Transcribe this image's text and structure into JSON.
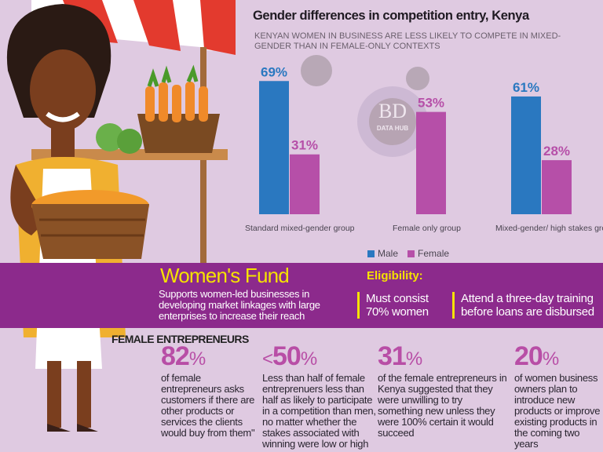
{
  "chart_data": {
    "type": "bar",
    "title": "Gender differences in competition entry, Kenya",
    "subtitle": "KENYAN WOMEN IN BUSINESS ARE LESS LIKELY TO COMPETE IN MIXED-GENDER THAN IN FEMALE-ONLY CONTEXTS",
    "categories": [
      "Standard mixed-gender group",
      "Female only group",
      "Mixed-gender/ high stakes grou"
    ],
    "series": [
      {
        "name": "Male",
        "color": "#2a78c0",
        "values": [
          69,
          null,
          61
        ],
        "labels": [
          "69%",
          "",
          "61%"
        ]
      },
      {
        "name": "Female",
        "color": "#b64fa8",
        "values": [
          31,
          53,
          28
        ],
        "labels": [
          "31%",
          "53%",
          "28%"
        ]
      }
    ],
    "ylim": [
      0,
      100
    ],
    "legend": [
      "Male",
      "Female"
    ],
    "legend_position": "bottom",
    "grid": false,
    "xlabel": "",
    "ylabel": ""
  },
  "watermark": {
    "logo": "BD",
    "sub": "DATA HUB"
  },
  "fund": {
    "title": "Women's Fund",
    "description": "Supports women-led businesses in developing market linkages with large enterprises to increase their reach",
    "eligibility_label": "Eligibility:",
    "criteria": [
      "Must consist 70% women",
      "Attend a three-day training before loans are disbursed"
    ]
  },
  "entrepreneurs": {
    "heading": "FEMALE ENTREPRENEURS",
    "stats": [
      {
        "prefix": "",
        "value": "82",
        "unit": "%",
        "text": "of female entrepreneurs asks customers if there are other products or services the clients would buy from them\""
      },
      {
        "prefix": "<",
        "value": "50",
        "unit": "%",
        "text": "Less than half of female entreprenuers less than half as likely to participate in a competition than men, no matter whether the stakes associated with winning were low or high"
      },
      {
        "prefix": "",
        "value": "31",
        "unit": "%",
        "text": "of the female entrepreneurs in Kenya suggested that they were unwilling to try something new unless they were 100% certain it would succeed"
      },
      {
        "prefix": "",
        "value": "20",
        "unit": "%",
        "text": "of women business owners plan to introduce new products or improve existing products in the coming two years"
      }
    ]
  }
}
